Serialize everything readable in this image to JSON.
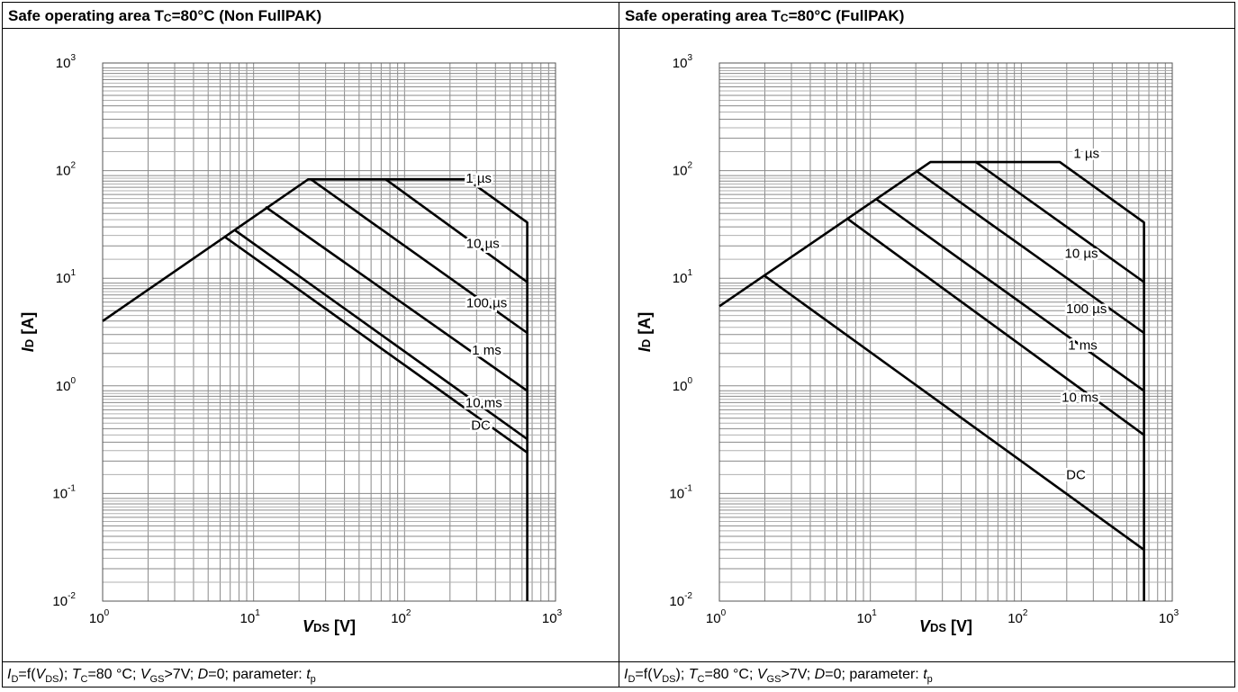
{
  "charts": [
    {
      "title_main": "Safe operating area T",
      "title_sub": "C",
      "title_rest": "=80°C (Non FullPAK)",
      "footer": {
        "a": "I",
        "a_sub": "D",
        "b": "=f(",
        "c": "V",
        "c_sub": "DS",
        "d": "); ",
        "e": "T",
        "e_sub": "C",
        "f": "=80 °C; ",
        "g": "V",
        "g_sub": "GS",
        "h": ">7V; ",
        "i": "D",
        "j": "=0; parameter: ",
        "k": "t",
        "k_sub": "p"
      },
      "xlabel_main": "V",
      "xlabel_sub": "DS",
      "xlabel_unit": " [V]",
      "ylabel_main": "I",
      "ylabel_sub": "D",
      "ylabel_unit": " [A]",
      "x_ticks": [
        {
          "base": "10",
          "exp": "0"
        },
        {
          "base": "10",
          "exp": "1"
        },
        {
          "base": "10",
          "exp": "2"
        },
        {
          "base": "10",
          "exp": "3"
        }
      ],
      "y_ticks": [
        {
          "base": "10",
          "exp": "-2"
        },
        {
          "base": "10",
          "exp": "-1"
        },
        {
          "base": "10",
          "exp": "0"
        },
        {
          "base": "10",
          "exp": "1"
        },
        {
          "base": "10",
          "exp": "2"
        },
        {
          "base": "10",
          "exp": "3"
        }
      ]
    },
    {
      "title_main": "Safe operating area T",
      "title_sub": "C",
      "title_rest": "=80°C (FullPAK)",
      "footer": {
        "a": "I",
        "a_sub": "D",
        "b": "=f(",
        "c": "V",
        "c_sub": "DS",
        "d": "); ",
        "e": "T",
        "e_sub": "C",
        "f": "=80 °C; ",
        "g": "V",
        "g_sub": "GS",
        "h": ">7V; ",
        "i": "D",
        "j": "=0; parameter: ",
        "k": "t",
        "k_sub": "p"
      },
      "xlabel_main": "V",
      "xlabel_sub": "DS",
      "xlabel_unit": " [V]",
      "ylabel_main": "I",
      "ylabel_sub": "D",
      "ylabel_unit": " [A]",
      "x_ticks": [
        {
          "base": "10",
          "exp": "0"
        },
        {
          "base": "10",
          "exp": "1"
        },
        {
          "base": "10",
          "exp": "2"
        },
        {
          "base": "10",
          "exp": "3"
        }
      ],
      "y_ticks": [
        {
          "base": "10",
          "exp": "-2"
        },
        {
          "base": "10",
          "exp": "-1"
        },
        {
          "base": "10",
          "exp": "0"
        },
        {
          "base": "10",
          "exp": "1"
        },
        {
          "base": "10",
          "exp": "2"
        },
        {
          "base": "10",
          "exp": "3"
        }
      ]
    }
  ],
  "chart_data": [
    {
      "type": "line",
      "title": "Safe operating area TC=80°C (Non FullPAK)",
      "xlabel": "VDS [V]",
      "ylabel": "ID [A]",
      "xscale": "log",
      "yscale": "log",
      "xlim": [
        1,
        1000
      ],
      "ylim": [
        0.01,
        1000
      ],
      "grid": true,
      "series": [
        {
          "name": "1 µs",
          "label": "1 µs",
          "label_at": [
            310,
            85
          ],
          "points": [
            [
              1,
              4
            ],
            [
              23,
              83
            ],
            [
              260,
              83
            ],
            [
              650,
              33
            ],
            [
              650,
              0.01
            ]
          ]
        },
        {
          "name": "10 µs",
          "label": "10 µs",
          "label_at": [
            330,
            21
          ],
          "points": [
            [
              75,
              83
            ],
            [
              650,
              9.2
            ]
          ]
        },
        {
          "name": "100 µs",
          "label": "100 µs",
          "label_at": [
            350,
            5.9
          ],
          "points": [
            [
              24,
              83
            ],
            [
              650,
              3.1
            ]
          ]
        },
        {
          "name": "1 ms",
          "label": "1 ms",
          "label_at": [
            350,
            2.15
          ],
          "points": [
            [
              12,
              46
            ],
            [
              650,
              0.9
            ]
          ]
        },
        {
          "name": "10 ms",
          "label": "10 ms",
          "label_at": [
            335,
            0.7
          ],
          "points": [
            [
              7.5,
              28
            ],
            [
              650,
              0.32
            ]
          ]
        },
        {
          "name": "DC",
          "label": "DC",
          "label_at": [
            320,
            0.43
          ],
          "points": [
            [
              6.5,
              24
            ],
            [
              650,
              0.24
            ]
          ]
        }
      ]
    },
    {
      "type": "line",
      "title": "Safe operating area TC=80°C (FullPAK)",
      "xlabel": "VDS [V]",
      "ylabel": "ID [A]",
      "xscale": "log",
      "yscale": "log",
      "xlim": [
        1,
        1000
      ],
      "ylim": [
        0.01,
        1000
      ],
      "grid": true,
      "series": [
        {
          "name": "1 µs",
          "label": "1 µs",
          "label_at": [
            270,
            145
          ],
          "points": [
            [
              1,
              5.5
            ],
            [
              25,
              120
            ],
            [
              180,
              120
            ],
            [
              650,
              33
            ],
            [
              650,
              0.01
            ]
          ]
        },
        {
          "name": "10 µs",
          "label": "10 µs",
          "label_at": [
            250,
            17
          ],
          "points": [
            [
              50,
              120
            ],
            [
              650,
              9.2
            ]
          ]
        },
        {
          "name": "100 µs",
          "label": "100 µs",
          "label_at": [
            270,
            5.2
          ],
          "points": [
            [
              20,
              100
            ],
            [
              650,
              3.1
            ]
          ]
        },
        {
          "name": "1 ms",
          "label": "1 ms",
          "label_at": [
            255,
            2.4
          ],
          "points": [
            [
              11,
              54
            ],
            [
              650,
              0.9
            ]
          ]
        },
        {
          "name": "10 ms",
          "label": "10 ms",
          "label_at": [
            245,
            0.78
          ],
          "points": [
            [
              7,
              36
            ],
            [
              650,
              0.35
            ]
          ]
        },
        {
          "name": "DC",
          "label": "DC",
          "label_at": [
            230,
            0.15
          ],
          "points": [
            [
              2,
              10.5
            ],
            [
              650,
              0.03
            ]
          ]
        }
      ]
    }
  ]
}
